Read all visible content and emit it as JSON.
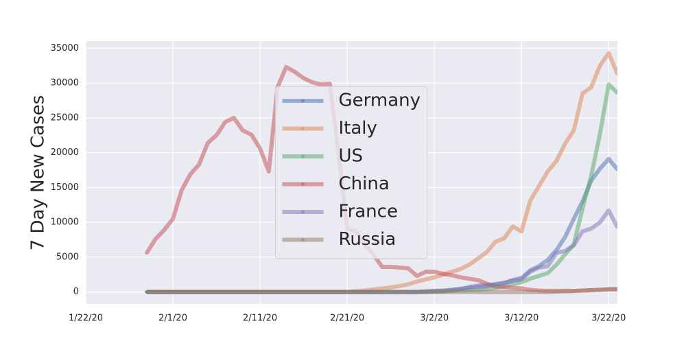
{
  "chart_data": {
    "type": "line",
    "y_label": "7 Day New Cases",
    "x": [
      "1/29/20",
      "1/30/20",
      "1/31/20",
      "2/1/20",
      "2/2/20",
      "2/3/20",
      "2/4/20",
      "2/5/20",
      "2/6/20",
      "2/7/20",
      "2/8/20",
      "2/9/20",
      "2/10/20",
      "2/11/20",
      "2/12/20",
      "2/13/20",
      "2/14/20",
      "2/15/20",
      "2/16/20",
      "2/17/20",
      "2/18/20",
      "2/19/20",
      "2/20/20",
      "2/21/20",
      "2/22/20",
      "2/23/20",
      "2/24/20",
      "2/25/20",
      "2/26/20",
      "2/27/20",
      "2/28/20",
      "2/29/20",
      "3/1/20",
      "3/2/20",
      "3/3/20",
      "3/4/20",
      "3/5/20",
      "3/6/20",
      "3/7/20",
      "3/8/20",
      "3/9/20",
      "3/10/20",
      "3/11/20",
      "3/12/20",
      "3/13/20",
      "3/14/20",
      "3/15/20",
      "3/16/20",
      "3/17/20",
      "3/18/20",
      "3/19/20",
      "3/20/20",
      "3/21/20",
      "3/22/20",
      "3/23/20"
    ],
    "series": [
      {
        "name": "Germany",
        "color": "#4c72b0",
        "values": [
          0,
          0,
          0,
          0,
          0,
          0,
          0,
          0,
          0,
          0,
          0,
          0,
          0,
          0,
          0,
          0,
          0,
          0,
          0,
          0,
          0,
          0,
          0,
          0,
          0,
          0,
          0,
          0,
          0,
          0,
          0,
          0,
          100,
          150,
          200,
          300,
          400,
          700,
          900,
          1000,
          1100,
          1300,
          1700,
          2000,
          3100,
          3700,
          4600,
          6000,
          7900,
          10500,
          13000,
          16000,
          17700,
          19100,
          17600
        ]
      },
      {
        "name": "Italy",
        "color": "#dd8452",
        "values": [
          0,
          0,
          0,
          0,
          0,
          0,
          0,
          0,
          0,
          0,
          0,
          0,
          0,
          0,
          0,
          0,
          0,
          0,
          0,
          0,
          0,
          0,
          0,
          0,
          100,
          200,
          350,
          500,
          650,
          850,
          1100,
          1500,
          1800,
          2100,
          2500,
          2900,
          3300,
          3900,
          4800,
          5700,
          7200,
          7700,
          9400,
          8700,
          13100,
          15200,
          17300,
          18800,
          21300,
          23200,
          28500,
          29400,
          32500,
          34300,
          31300
        ]
      },
      {
        "name": "US",
        "color": "#55a868",
        "values": [
          0,
          0,
          0,
          0,
          0,
          0,
          0,
          0,
          0,
          0,
          0,
          0,
          0,
          0,
          0,
          0,
          0,
          0,
          0,
          0,
          0,
          0,
          0,
          0,
          0,
          0,
          0,
          0,
          0,
          0,
          0,
          0,
          0,
          50,
          100,
          150,
          200,
          250,
          300,
          400,
          600,
          800,
          1100,
          1400,
          1900,
          2300,
          2700,
          3900,
          5400,
          6800,
          12000,
          16700,
          22700,
          29800,
          28600
        ]
      },
      {
        "name": "China",
        "color": "#c44e52",
        "values": [
          5600,
          7600,
          8900,
          10500,
          14600,
          16900,
          18300,
          21400,
          22500,
          24400,
          25000,
          23200,
          22600,
          20600,
          17300,
          29400,
          32300,
          31600,
          30700,
          30100,
          29800,
          29900,
          20000,
          9100,
          8700,
          6800,
          5400,
          3600,
          3600,
          3500,
          3400,
          2300,
          2900,
          2900,
          2600,
          2400,
          2100,
          1900,
          1700,
          1200,
          800,
          700,
          600,
          500,
          300,
          200,
          150,
          150,
          150,
          150,
          200,
          250,
          300,
          350,
          350
        ]
      },
      {
        "name": "France",
        "color": "#8172b3",
        "values": [
          0,
          0,
          0,
          0,
          0,
          0,
          0,
          0,
          0,
          0,
          0,
          0,
          0,
          0,
          0,
          0,
          0,
          0,
          0,
          0,
          0,
          0,
          0,
          0,
          0,
          0,
          0,
          0,
          0,
          0,
          0,
          0,
          50,
          100,
          150,
          300,
          450,
          600,
          700,
          800,
          1100,
          1300,
          1600,
          1800,
          2900,
          3500,
          3700,
          5600,
          5900,
          6700,
          8700,
          9100,
          10000,
          11700,
          9300
        ]
      },
      {
        "name": "Russia",
        "color": "#937860",
        "values": [
          0,
          0,
          0,
          0,
          0,
          0,
          0,
          0,
          0,
          0,
          0,
          0,
          0,
          0,
          0,
          0,
          0,
          0,
          0,
          0,
          0,
          0,
          0,
          0,
          0,
          0,
          0,
          0,
          0,
          0,
          0,
          0,
          0,
          0,
          0,
          0,
          0,
          0,
          0,
          0,
          0,
          0,
          0,
          0,
          0,
          0,
          0,
          50,
          100,
          150,
          200,
          250,
          300,
          400,
          450
        ]
      }
    ],
    "xlim": [
      "1/22/20",
      "3/23/20"
    ],
    "xticks": [
      "1/22/20",
      "2/1/20",
      "2/11/20",
      "2/21/20",
      "3/2/20",
      "3/12/20",
      "3/22/20"
    ],
    "ylim": [
      -1715,
      36015
    ],
    "yticks": [
      0,
      5000,
      10000,
      15000,
      20000,
      25000,
      30000,
      35000
    ],
    "grid": true,
    "legend_loc": "center"
  }
}
